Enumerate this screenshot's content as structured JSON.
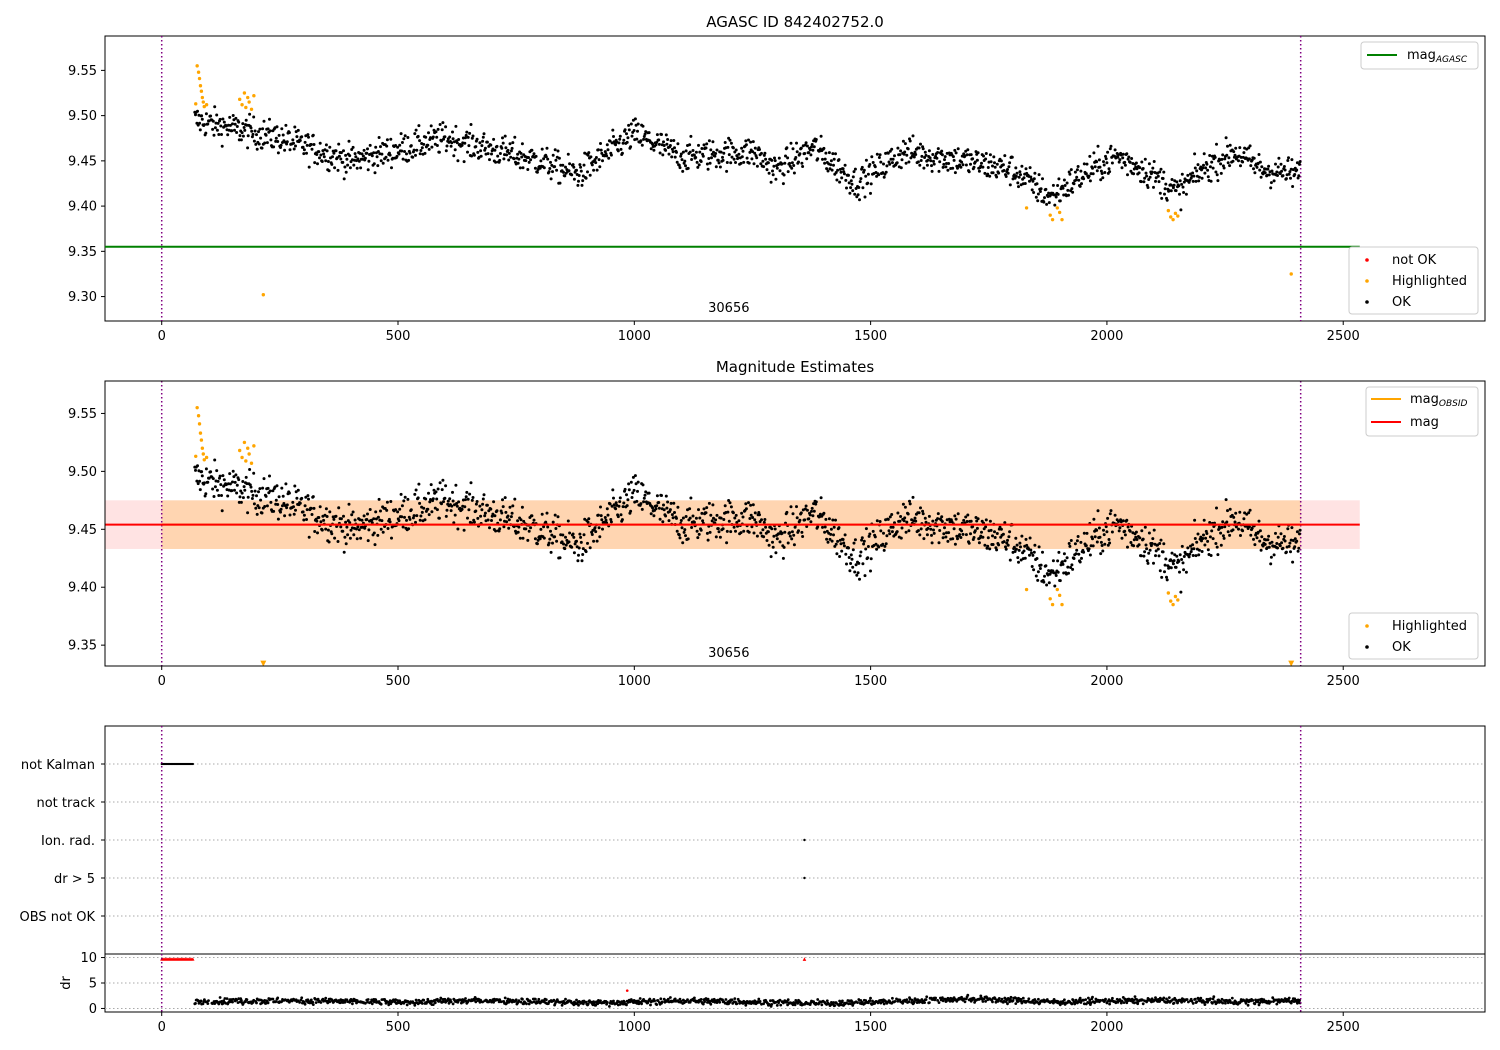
{
  "chart_data": [
    {
      "type": "scatter",
      "title": "AGASC ID 842402752.0",
      "xlim": [
        -120,
        2800
      ],
      "ylim": [
        9.273,
        9.588
      ],
      "xticks": [
        0,
        500,
        1000,
        1500,
        2000,
        2500
      ],
      "yticks": [
        9.3,
        9.35,
        9.4,
        9.45,
        9.5,
        9.55
      ],
      "ytick_labels": [
        "9.30",
        "9.35",
        "9.40",
        "9.45",
        "9.50",
        "9.55"
      ],
      "vlines": [
        0,
        2410
      ],
      "obsid_label": "30656",
      "obsid_label_x": 1200,
      "mag_agasc": 9.355,
      "mag_agasc_xrange": [
        -120,
        2535
      ],
      "legend_top": {
        "label": "mag",
        "sub": "AGASC",
        "color": "#008000"
      },
      "legend_bottom": [
        {
          "label": "not OK",
          "color": "#ff0000"
        },
        {
          "label": "Highlighted",
          "color": "#ffa500"
        },
        {
          "label": "OK",
          "color": "#000000"
        }
      ],
      "series": [
        {
          "name": "OK",
          "color": "#000000",
          "segments": [
            [
              70,
              9.495
            ],
            [
              250,
              9.475
            ],
            [
              400,
              9.45
            ],
            [
              600,
              9.475
            ],
            [
              800,
              9.45
            ],
            [
              880,
              9.435
            ],
            [
              1000,
              9.48
            ],
            [
              1100,
              9.455
            ],
            [
              1250,
              9.46
            ],
            [
              1300,
              9.44
            ],
            [
              1380,
              9.465
            ],
            [
              1470,
              9.425
            ],
            [
              1570,
              9.46
            ],
            [
              1700,
              9.45
            ],
            [
              1800,
              9.44
            ],
            [
              1880,
              9.41
            ],
            [
              1950,
              9.435
            ],
            [
              2020,
              9.455
            ],
            [
              2080,
              9.44
            ],
            [
              2150,
              9.415
            ],
            [
              2200,
              9.44
            ],
            [
              2270,
              9.46
            ],
            [
              2330,
              9.44
            ],
            [
              2410,
              9.435
            ]
          ],
          "noise": 0.017
        },
        {
          "name": "Highlighted",
          "color": "#ffa500",
          "points": [
            [
              75,
              9.555
            ],
            [
              78,
              9.548
            ],
            [
              80,
              9.541
            ],
            [
              82,
              9.533
            ],
            [
              84,
              9.527
            ],
            [
              86,
              9.52
            ],
            [
              88,
              9.515
            ],
            [
              72,
              9.513
            ],
            [
              90,
              9.51
            ],
            [
              95,
              9.512
            ],
            [
              165,
              9.518
            ],
            [
              170,
              9.512
            ],
            [
              175,
              9.525
            ],
            [
              178,
              9.509
            ],
            [
              182,
              9.52
            ],
            [
              185,
              9.515
            ],
            [
              190,
              9.507
            ],
            [
              195,
              9.522
            ],
            [
              1830,
              9.398
            ],
            [
              1880,
              9.39
            ],
            [
              1885,
              9.385
            ],
            [
              1895,
              9.398
            ],
            [
              1900,
              9.393
            ],
            [
              1905,
              9.385
            ],
            [
              2130,
              9.395
            ],
            [
              2135,
              9.388
            ],
            [
              2140,
              9.385
            ],
            [
              2145,
              9.392
            ],
            [
              2150,
              9.389
            ],
            [
              215,
              9.302
            ],
            [
              2390,
              9.325
            ]
          ]
        }
      ]
    },
    {
      "type": "scatter",
      "title": "Magnitude Estimates",
      "xlim": [
        -120,
        2800
      ],
      "ylim": [
        9.332,
        9.578
      ],
      "xticks": [
        0,
        500,
        1000,
        1500,
        2000,
        2500
      ],
      "yticks": [
        9.35,
        9.4,
        9.45,
        9.5,
        9.55
      ],
      "ytick_labels": [
        "9.35",
        "9.40",
        "9.45",
        "9.50",
        "9.55"
      ],
      "vlines": [
        0,
        2410
      ],
      "obsid_label": "30656",
      "obsid_label_x": 1200,
      "mag": 9.454,
      "mag_band": [
        9.433,
        9.475
      ],
      "mag_xrange": [
        -120,
        2535
      ],
      "mag_obsid": 9.454,
      "mag_obsid_band": [
        9.433,
        9.475
      ],
      "mag_obsid_xrange": [
        0,
        2410
      ],
      "legend_top": [
        {
          "label": "mag",
          "sub": "OBSID",
          "color": "#ffa500"
        },
        {
          "label": "mag",
          "color": "#ff0000"
        }
      ],
      "legend_bottom": [
        {
          "label": "Highlighted",
          "color": "#ffa500"
        },
        {
          "label": "OK",
          "color": "#000000"
        }
      ],
      "triangles": [
        [
          215,
          9.334
        ],
        [
          2390,
          9.334
        ]
      ]
    },
    {
      "type": "scatter",
      "categories": [
        "not Kalman",
        "not track",
        "Ion. rad.",
        "dr > 5",
        "OBS not OK"
      ],
      "xlim": [
        -120,
        2800
      ],
      "xticks": [
        0,
        500,
        1000,
        1500,
        2000,
        2500
      ],
      "vlines": [
        0,
        2410
      ],
      "flags": {
        "not Kalman": [
          0,
          68
        ],
        "Ion. rad.": [
          1360
        ],
        "dr > 5": [
          1360
        ]
      },
      "dr": {
        "ylabel": "dr",
        "ylim": [
          -0.5,
          10.5
        ],
        "yticks": [
          0,
          5,
          10
        ],
        "ytick_labels": [
          "0",
          "5",
          "10"
        ],
        "capped": [
          0,
          68
        ],
        "capped_extra": [
          1360
        ],
        "outliers": [
          [
            985,
            3.5
          ]
        ],
        "segments": [
          [
            70,
            1.4
          ],
          [
            300,
            1.5
          ],
          [
            500,
            1.2
          ],
          [
            700,
            1.6
          ],
          [
            900,
            1.1
          ],
          [
            1100,
            1.5
          ],
          [
            1300,
            1.2
          ],
          [
            1400,
            1.0
          ],
          [
            1550,
            1.4
          ],
          [
            1700,
            1.9
          ],
          [
            1900,
            1.3
          ],
          [
            2100,
            1.6
          ],
          [
            2300,
            1.3
          ],
          [
            2410,
            1.6
          ]
        ],
        "noise": 0.6
      }
    }
  ]
}
